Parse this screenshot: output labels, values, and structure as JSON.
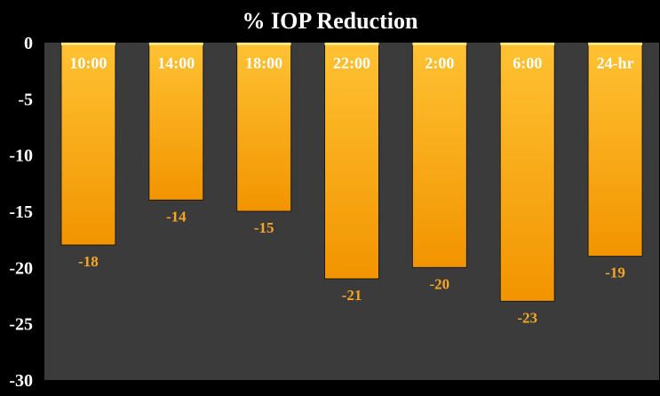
{
  "chart_data": {
    "type": "bar",
    "title": "% IOP Reduction",
    "categories": [
      "10:00",
      "14:00",
      "18:00",
      "22:00",
      "2:00",
      "6:00",
      "24-hr"
    ],
    "values": [
      -18,
      -14,
      -15,
      -21,
      -20,
      -23,
      -19
    ],
    "value_labels": [
      "-18",
      "-14",
      "-15",
      "-21",
      "-20",
      "-23",
      "-19"
    ],
    "xlabel": "",
    "ylabel": "",
    "ylim": [
      -30,
      0
    ],
    "yticks": [
      "0",
      "-5",
      "-10",
      "-15",
      "-20",
      "-25",
      "-30"
    ],
    "grid": false,
    "legend": "none",
    "colors": {
      "background": "#000000",
      "plot_area": "#3b3b3b",
      "bar_light": "#ffc233",
      "bar_dark": "#f29400",
      "value_label": "#f5a623",
      "text": "#ffffff"
    }
  }
}
